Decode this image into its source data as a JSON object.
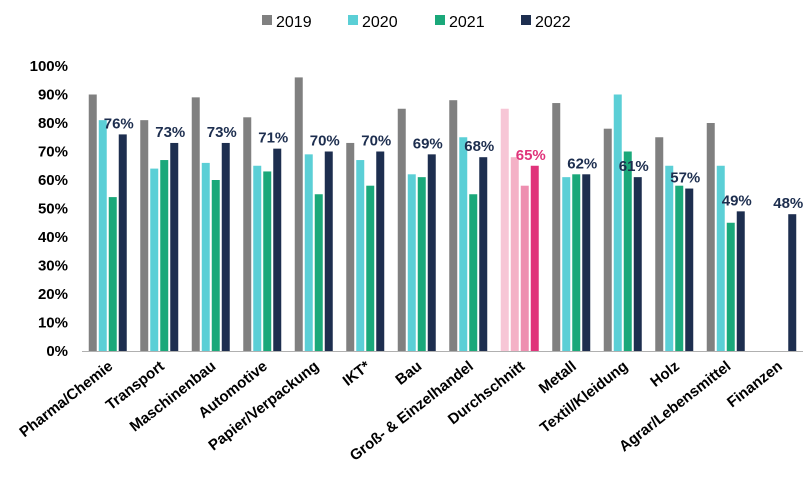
{
  "chart_data": {
    "type": "bar",
    "categories": [
      "Pharma/Chemie",
      "Transport",
      "Maschinenbau",
      "Automotive",
      "Papier/Verpackung",
      "IKT*",
      "Bau",
      "Groß- & Einzelhandel",
      "Durchschnitt",
      "Metall",
      "Textil/Kleidung",
      "Holz",
      "Agrar/Lebensmittel",
      "Finanzen"
    ],
    "series": [
      {
        "name": "2019",
        "color": "#808080",
        "values": [
          90,
          81,
          89,
          82,
          96,
          73,
          85,
          88,
          85,
          87,
          78,
          75,
          80,
          null
        ]
      },
      {
        "name": "2020",
        "color": "#5bcfd6",
        "values": [
          81,
          64,
          66,
          65,
          69,
          67,
          62,
          75,
          68,
          61,
          90,
          65,
          65,
          null
        ]
      },
      {
        "name": "2021",
        "color": "#1aa87a",
        "values": [
          54,
          67,
          60,
          63,
          55,
          58,
          61,
          55,
          58,
          62,
          70,
          58,
          45,
          null
        ]
      },
      {
        "name": "2022",
        "color": "#1d2e4f",
        "values": [
          76,
          73,
          73,
          71,
          70,
          70,
          69,
          68,
          65,
          62,
          61,
          57,
          49,
          48
        ]
      }
    ],
    "highlight": {
      "category": "Durchschnitt",
      "colors": [
        "#f7c6d6",
        "#f4b1c6",
        "#ee8fb0",
        "#e0337a"
      ],
      "label_color": "#e0337a"
    },
    "data_labels": [
      "76%",
      "73%",
      "73%",
      "71%",
      "70%",
      "70%",
      "69%",
      "68%",
      "65%",
      "62%",
      "61%",
      "57%",
      "49%",
      "48%"
    ],
    "data_label_color": "#1d2e4f",
    "ylim": [
      0,
      100
    ],
    "yticks": [
      "0%",
      "10%",
      "20%",
      "30%",
      "40%",
      "50%",
      "60%",
      "70%",
      "80%",
      "90%",
      "100%"
    ],
    "title": "",
    "xlabel": "",
    "ylabel": "",
    "grid": false,
    "legend_position": "top-center"
  }
}
